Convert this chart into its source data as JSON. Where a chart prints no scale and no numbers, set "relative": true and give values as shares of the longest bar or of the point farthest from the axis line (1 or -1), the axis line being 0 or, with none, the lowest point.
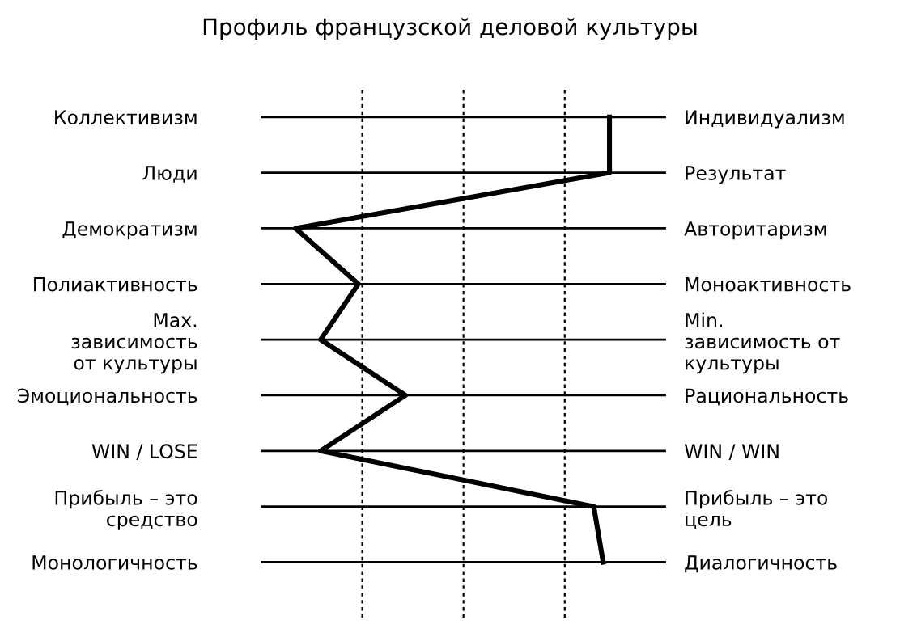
{
  "chart_data": {
    "type": "line",
    "orientation": "horizontal",
    "relative": true,
    "title": "Профиль французской деловой культуры",
    "categories": [
      "Коллективизм",
      "Люди",
      "Демократизм",
      "Полиактивность",
      "Max.\nзависимость\nот культуры",
      "Эмоциональность",
      "WIN / LOSE",
      "Прибыль – это\nсредство",
      "Монологичность"
    ],
    "y2_categories": [
      "Индивидуализм",
      "Результат",
      "Авторитаризм",
      "Моноактивность",
      "Min.\nзависимость от\nкультуры",
      "Рациональность",
      "WIN / WIN",
      "Прибыль – это\nцель",
      "Диалогичность"
    ],
    "series": [
      {
        "color": "#000000",
        "values": [
          1,
          1,
          0,
          0.2,
          0.08,
          0.35,
          0.08,
          0.95,
          0.98
        ]
      }
    ],
    "grid": true,
    "marker": "none",
    "line_style": "solid",
    "legend": false
  }
}
